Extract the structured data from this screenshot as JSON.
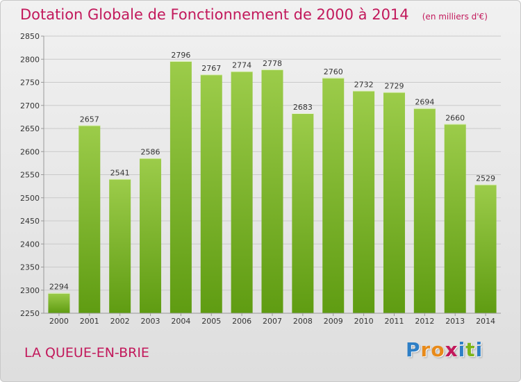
{
  "title": "Dotation Globale de Fonctionnement de 2000 à 2014",
  "subtitle": "(en milliers d'€)",
  "commune": "LA QUEUE-EN-BRIE",
  "logo": {
    "letters": [
      "P",
      "r",
      "o",
      "x",
      "i",
      "t",
      "i"
    ],
    "colors": [
      "#2e7fc6",
      "#e88a1a",
      "#e88a1a",
      "#c2185b",
      "#2e7fc6",
      "#7cb518",
      "#2e7fc6"
    ]
  },
  "colors": {
    "bar_top": "#9ccc4a",
    "bar_bottom": "#5f9c12",
    "title": "#c2185b"
  },
  "chart_data": {
    "type": "bar",
    "title": "Dotation Globale de Fonctionnement de 2000 à 2014",
    "subtitle": "(en milliers d'€)",
    "categories": [
      "2000",
      "2001",
      "2002",
      "2003",
      "2004",
      "2005",
      "2006",
      "2007",
      "2008",
      "2009",
      "2010",
      "2011",
      "2012",
      "2013",
      "2014"
    ],
    "values": [
      2294,
      2657,
      2541,
      2586,
      2796,
      2767,
      2774,
      2778,
      2683,
      2760,
      2732,
      2729,
      2694,
      2660,
      2529
    ],
    "ylim": [
      2250,
      2850
    ],
    "yticks": [
      2250,
      2300,
      2350,
      2400,
      2450,
      2500,
      2550,
      2600,
      2650,
      2700,
      2750,
      2800,
      2850
    ],
    "grid": true,
    "legend": "none"
  }
}
